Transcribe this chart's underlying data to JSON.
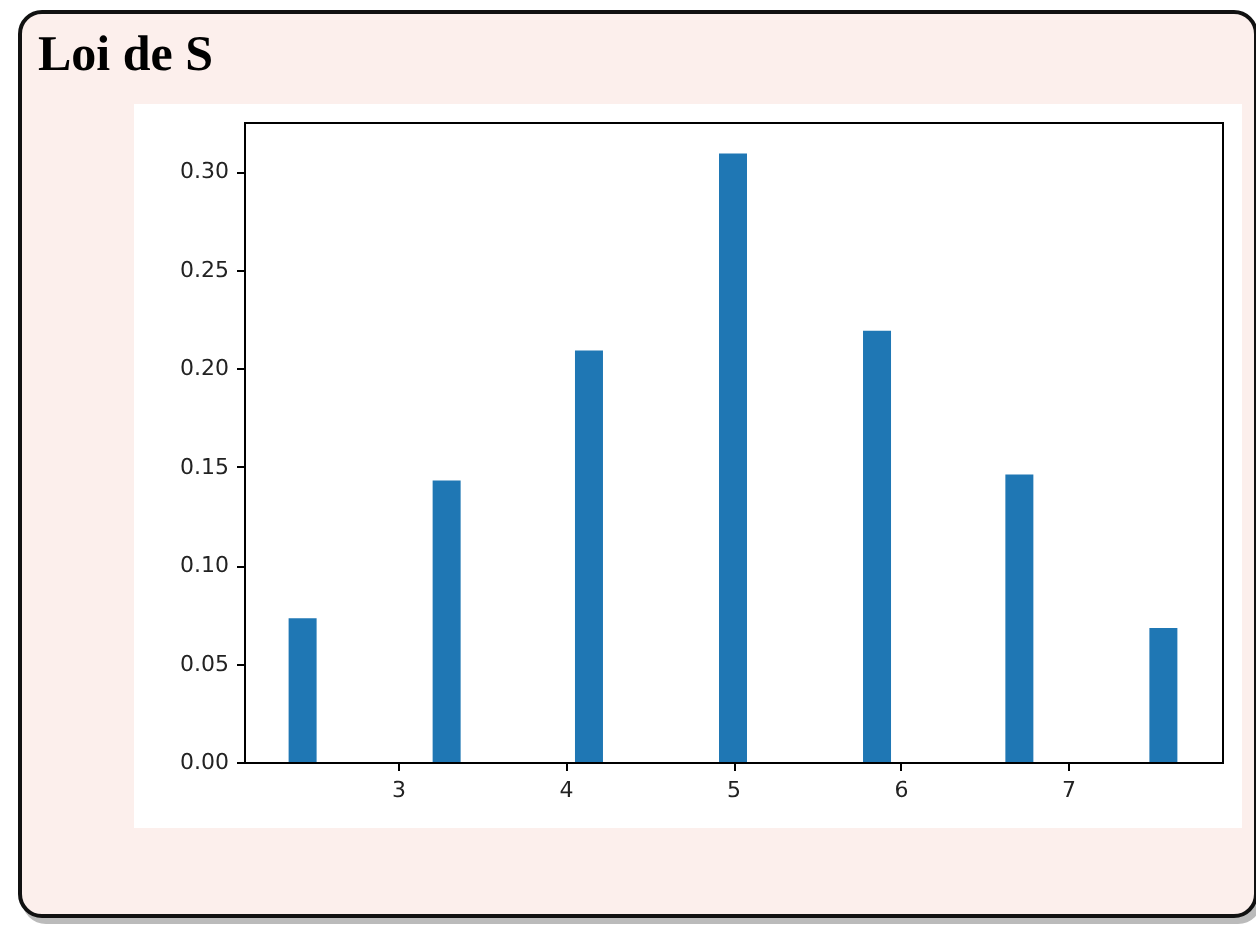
{
  "chart_data": {
    "type": "bar",
    "title": "Loi de S",
    "x": [
      2.43,
      3.29,
      4.14,
      5.0,
      5.86,
      6.71,
      7.57
    ],
    "values": [
      0.073,
      0.143,
      0.209,
      0.309,
      0.219,
      0.146,
      0.068
    ],
    "color": "#1f77b4",
    "xlim": [
      2.08,
      7.92
    ],
    "xticks": [
      3,
      4,
      5,
      6,
      7
    ],
    "ylim": [
      0,
      0.325
    ],
    "yticks": [
      {
        "value": 0,
        "label": "0.00"
      },
      {
        "value": 0.05,
        "label": "0.05"
      },
      {
        "value": 0.1,
        "label": "0.10"
      },
      {
        "value": 0.15,
        "label": "0.15"
      },
      {
        "value": 0.2,
        "label": "0.20"
      },
      {
        "value": 0.25,
        "label": "0.25"
      },
      {
        "value": 0.3,
        "label": "0.30"
      }
    ],
    "grid": false
  }
}
